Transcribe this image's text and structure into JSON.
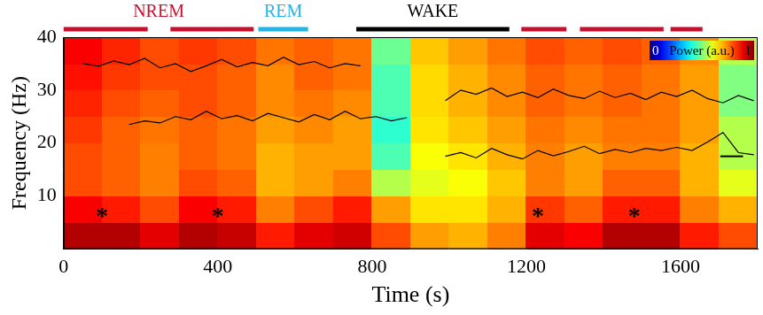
{
  "chart_data": {
    "type": "heatmap",
    "x_label": "Time (s)",
    "y_label": "Frequency (Hz)",
    "xlim": [
      0,
      1800
    ],
    "xticks": [
      0,
      400,
      800,
      1200,
      1600
    ],
    "ylim": [
      0,
      40
    ],
    "yticks": [
      10,
      20,
      30,
      40
    ],
    "grid": false,
    "heatmap": {
      "x_edges": [
        0,
        100,
        200,
        300,
        400,
        500,
        600,
        700,
        800,
        900,
        1000,
        1100,
        1200,
        1300,
        1400,
        1500,
        1600,
        1700,
        1800
      ],
      "y_edges": [
        0,
        5,
        10,
        15,
        20,
        25,
        30,
        35,
        40
      ],
      "values": [
        [
          0.95,
          0.95,
          0.9,
          0.95,
          0.93,
          0.85,
          0.9,
          0.92,
          0.8,
          0.72,
          0.7,
          0.75,
          0.9,
          0.88,
          0.95,
          0.95,
          0.85,
          0.8
        ],
        [
          0.88,
          0.85,
          0.8,
          0.88,
          0.85,
          0.75,
          0.8,
          0.85,
          0.72,
          0.65,
          0.65,
          0.7,
          0.82,
          0.78,
          0.85,
          0.85,
          0.75,
          0.7
        ],
        [
          0.8,
          0.78,
          0.75,
          0.8,
          0.78,
          0.7,
          0.72,
          0.75,
          0.55,
          0.6,
          0.62,
          0.68,
          0.75,
          0.72,
          0.78,
          0.78,
          0.7,
          0.6
        ],
        [
          0.8,
          0.78,
          0.75,
          0.78,
          0.76,
          0.7,
          0.72,
          0.72,
          0.45,
          0.62,
          0.65,
          0.7,
          0.75,
          0.72,
          0.75,
          0.75,
          0.7,
          0.55
        ],
        [
          0.82,
          0.78,
          0.76,
          0.78,
          0.76,
          0.72,
          0.74,
          0.72,
          0.42,
          0.65,
          0.68,
          0.72,
          0.76,
          0.74,
          0.76,
          0.76,
          0.72,
          0.55
        ],
        [
          0.84,
          0.8,
          0.78,
          0.8,
          0.78,
          0.74,
          0.76,
          0.74,
          0.45,
          0.66,
          0.7,
          0.74,
          0.78,
          0.76,
          0.78,
          0.76,
          0.72,
          0.5
        ],
        [
          0.86,
          0.82,
          0.8,
          0.8,
          0.78,
          0.74,
          0.78,
          0.76,
          0.45,
          0.66,
          0.7,
          0.74,
          0.78,
          0.76,
          0.78,
          0.76,
          0.72,
          0.5
        ],
        [
          0.88,
          0.84,
          0.8,
          0.82,
          0.8,
          0.76,
          0.78,
          0.76,
          0.48,
          0.68,
          0.72,
          0.76,
          0.8,
          0.78,
          0.8,
          0.78,
          0.74,
          0.55
        ]
      ]
    },
    "colorbar": {
      "label": "Power (a.u.)",
      "range": [
        0,
        1
      ],
      "ticks": [
        0,
        1
      ]
    },
    "series": [
      {
        "color": "#000000",
        "line_style": "solid",
        "x": [
          50,
          90,
          130,
          170,
          210,
          250,
          290,
          330,
          370,
          410,
          450,
          490,
          530,
          570,
          610,
          650,
          690,
          730,
          770
        ],
        "values": [
          35,
          34.5,
          35.5,
          34.8,
          36,
          34.2,
          35,
          33.5,
          34.6,
          35.8,
          34.4,
          35.2,
          34.6,
          36.2,
          34.8,
          35.4,
          34.2,
          35,
          34.6
        ]
      },
      {
        "color": "#000000",
        "line_style": "solid",
        "x": [
          170,
          210,
          250,
          290,
          330,
          370,
          410,
          450,
          490,
          530,
          570,
          610,
          650,
          690,
          730,
          770,
          810,
          850,
          890
        ],
        "values": [
          23.5,
          24.2,
          23.8,
          25,
          24.4,
          26,
          24.6,
          25.2,
          24.2,
          25.6,
          24.8,
          24,
          25.4,
          24.4,
          26,
          24.6,
          25,
          24.2,
          24.8
        ]
      },
      {
        "color": "#000000",
        "line_style": "solid",
        "x": [
          990,
          1030,
          1070,
          1110,
          1150,
          1190,
          1230,
          1270,
          1310,
          1350,
          1390,
          1430,
          1470,
          1510,
          1550,
          1590,
          1630,
          1670,
          1710,
          1750,
          1790
        ],
        "values": [
          28,
          30,
          29.2,
          30.4,
          28.8,
          29.6,
          28.6,
          30.2,
          29,
          28.4,
          29.8,
          28.6,
          29.4,
          28.2,
          29.6,
          28.8,
          30,
          28.4,
          27.6,
          29,
          28
        ]
      },
      {
        "color": "#000000",
        "line_style": "solid",
        "x": [
          990,
          1030,
          1070,
          1110,
          1150,
          1190,
          1230,
          1270,
          1310,
          1350,
          1390,
          1430,
          1470,
          1510,
          1550,
          1590,
          1630,
          1670,
          1710,
          1750,
          1790
        ],
        "values": [
          17.5,
          18.2,
          17.2,
          19,
          17.8,
          17,
          18.6,
          17.6,
          18.4,
          19.4,
          18,
          18.8,
          18.2,
          19,
          18.6,
          19.2,
          18.6,
          20.2,
          22,
          18.2,
          17.8
        ]
      }
    ],
    "states": [
      {
        "label": "NREM",
        "color": "#c8102e",
        "segments": [
          [
            0,
            218
          ],
          [
            277,
            493
          ],
          [
            1187,
            1304
          ],
          [
            1339,
            1556
          ],
          [
            1574,
            1657
          ]
        ]
      },
      {
        "label": "REM",
        "color": "#22b5e8",
        "segments": [
          [
            505,
            634
          ]
        ]
      },
      {
        "label": "WAKE",
        "color": "#000000",
        "segments": [
          [
            759,
            1156
          ]
        ]
      }
    ],
    "annotations": [
      {
        "text": "*",
        "x": 100,
        "y": 7
      },
      {
        "text": "*",
        "x": 400,
        "y": 7
      },
      {
        "text": "*",
        "x": 1230,
        "y": 7
      },
      {
        "text": "*",
        "x": 1480,
        "y": 7
      }
    ],
    "scale_bar": {
      "x": [
        1703,
        1762
      ],
      "y": 17.5
    }
  }
}
